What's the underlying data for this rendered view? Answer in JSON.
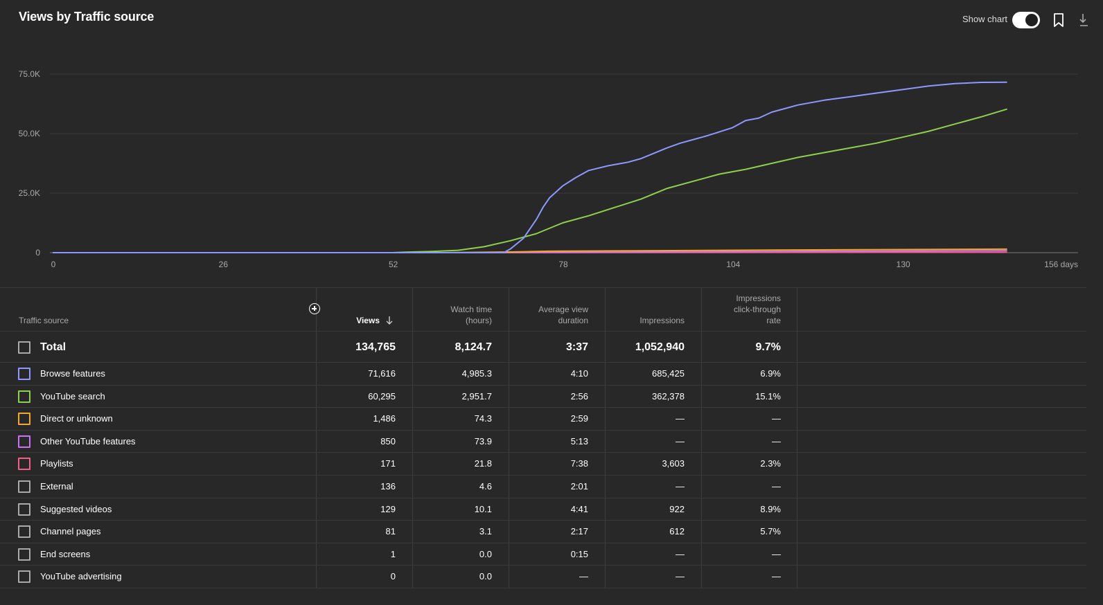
{
  "header": {
    "title": "Views by Traffic source",
    "show_chart_label": "Show chart"
  },
  "chart_data": {
    "type": "line",
    "x_max_label": "156 days",
    "x_ticks": [
      "0",
      "26",
      "52",
      "78",
      "104",
      "130"
    ],
    "x_tick_values": [
      0,
      26,
      52,
      78,
      104,
      130,
      156
    ],
    "y_ticks": [
      "0",
      "25.0K",
      "50.0K",
      "75.0K"
    ],
    "y_tick_values": [
      0,
      25000,
      50000,
      75000
    ],
    "xlim": [
      0,
      156
    ],
    "ylim": [
      0,
      75000
    ],
    "grid": true,
    "series": [
      {
        "name": "Browse features",
        "color": "#8c9aff",
        "points": [
          [
            0,
            0
          ],
          [
            60,
            0
          ],
          [
            66,
            0
          ],
          [
            69,
            0
          ],
          [
            70,
            1500
          ],
          [
            72,
            6000
          ],
          [
            74,
            14000
          ],
          [
            75,
            19000
          ],
          [
            76,
            23000
          ],
          [
            78,
            28000
          ],
          [
            80,
            31500
          ],
          [
            82,
            34500
          ],
          [
            85,
            36500
          ],
          [
            88,
            38000
          ],
          [
            90,
            39500
          ],
          [
            94,
            44000
          ],
          [
            96,
            46000
          ],
          [
            98,
            47500
          ],
          [
            100,
            49000
          ],
          [
            104,
            52500
          ],
          [
            106,
            55500
          ],
          [
            108,
            56500
          ],
          [
            110,
            59000
          ],
          [
            114,
            62000
          ],
          [
            118,
            64000
          ],
          [
            122,
            65500
          ],
          [
            126,
            67000
          ],
          [
            130,
            68500
          ],
          [
            134,
            70000
          ],
          [
            138,
            71000
          ],
          [
            142,
            71500
          ],
          [
            146,
            71600
          ]
        ]
      },
      {
        "name": "YouTube search",
        "color": "#8ed14c",
        "points": [
          [
            0,
            0
          ],
          [
            52,
            0
          ],
          [
            54,
            200
          ],
          [
            58,
            500
          ],
          [
            62,
            1000
          ],
          [
            66,
            2500
          ],
          [
            70,
            5000
          ],
          [
            74,
            8000
          ],
          [
            78,
            12500
          ],
          [
            82,
            15500
          ],
          [
            86,
            19000
          ],
          [
            90,
            22500
          ],
          [
            94,
            27000
          ],
          [
            98,
            30000
          ],
          [
            102,
            33000
          ],
          [
            106,
            35000
          ],
          [
            110,
            37500
          ],
          [
            114,
            40000
          ],
          [
            118,
            42000
          ],
          [
            122,
            44000
          ],
          [
            126,
            46000
          ],
          [
            130,
            48500
          ],
          [
            134,
            51000
          ],
          [
            138,
            54000
          ],
          [
            142,
            57000
          ],
          [
            146,
            60300
          ]
        ]
      },
      {
        "name": "Direct or unknown",
        "color": "#f4a926",
        "points": [
          [
            0,
            0
          ],
          [
            60,
            0
          ],
          [
            70,
            300
          ],
          [
            76,
            600
          ],
          [
            90,
            800
          ],
          [
            110,
            1100
          ],
          [
            130,
            1300
          ],
          [
            146,
            1486
          ]
        ]
      },
      {
        "name": "Other YouTube features",
        "color": "#c873f0",
        "points": [
          [
            0,
            0
          ],
          [
            68,
            0
          ],
          [
            90,
            300
          ],
          [
            120,
            600
          ],
          [
            146,
            850
          ]
        ]
      },
      {
        "name": "Playlists",
        "color": "#f2608a",
        "points": [
          [
            0,
            0
          ],
          [
            70,
            0
          ],
          [
            100,
            80
          ],
          [
            146,
            171
          ]
        ]
      }
    ]
  },
  "table": {
    "headers": {
      "source": "Traffic source",
      "views": "Views",
      "watch_time_1": "Watch time",
      "watch_time_2": "(hours)",
      "avd_1": "Average view",
      "avd_2": "duration",
      "impressions": "Impressions",
      "ctr_1": "Impressions",
      "ctr_2": "click-through",
      "ctr_3": "rate"
    },
    "total": {
      "name": "Total",
      "views": "134,765",
      "watch": "8,124.7",
      "avd": "3:37",
      "impressions": "1,052,940",
      "ctr": "9.7%"
    },
    "rows": [
      {
        "name": "Browse features",
        "views": "71,616",
        "watch": "4,985.3",
        "avd": "4:10",
        "impressions": "685,425",
        "ctr": "6.9%",
        "color": "#8c9aff"
      },
      {
        "name": "YouTube search",
        "views": "60,295",
        "watch": "2,951.7",
        "avd": "2:56",
        "impressions": "362,378",
        "ctr": "15.1%",
        "color": "#8ed14c"
      },
      {
        "name": "Direct or unknown",
        "views": "1,486",
        "watch": "74.3",
        "avd": "2:59",
        "impressions": "—",
        "ctr": "—",
        "color": "#f4a926"
      },
      {
        "name": "Other YouTube features",
        "views": "850",
        "watch": "73.9",
        "avd": "5:13",
        "impressions": "—",
        "ctr": "—",
        "color": "#c873f0"
      },
      {
        "name": "Playlists",
        "views": "171",
        "watch": "21.8",
        "avd": "7:38",
        "impressions": "3,603",
        "ctr": "2.3%",
        "color": "#f2608a"
      },
      {
        "name": "External",
        "views": "136",
        "watch": "4.6",
        "avd": "2:01",
        "impressions": "—",
        "ctr": "—",
        "color": "#aaaaaa"
      },
      {
        "name": "Suggested videos",
        "views": "129",
        "watch": "10.1",
        "avd": "4:41",
        "impressions": "922",
        "ctr": "8.9%",
        "color": "#aaaaaa"
      },
      {
        "name": "Channel pages",
        "views": "81",
        "watch": "3.1",
        "avd": "2:17",
        "impressions": "612",
        "ctr": "5.7%",
        "color": "#aaaaaa"
      },
      {
        "name": "End screens",
        "views": "1",
        "watch": "0.0",
        "avd": "0:15",
        "impressions": "—",
        "ctr": "—",
        "color": "#aaaaaa"
      },
      {
        "name": "YouTube advertising",
        "views": "0",
        "watch": "0.0",
        "avd": "—",
        "impressions": "—",
        "ctr": "—",
        "color": "#aaaaaa"
      }
    ]
  }
}
